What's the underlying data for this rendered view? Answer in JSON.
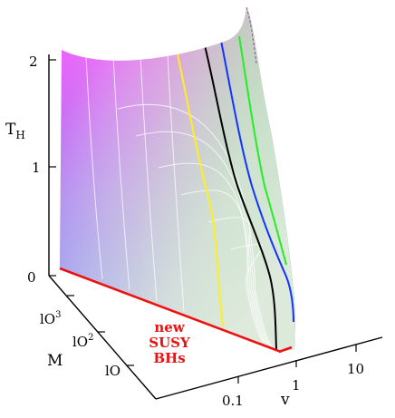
{
  "chart_data": {
    "type": "surface3d",
    "z_axis": {
      "label": "T",
      "label_sub": "H",
      "ticks": [
        "0",
        "1",
        "2"
      ],
      "range": [
        0,
        2
      ]
    },
    "x_axis": {
      "label": "v",
      "scale": "log",
      "ticks": [
        "0.1",
        "1",
        "10"
      ]
    },
    "y_axis": {
      "label": "M",
      "scale": "log",
      "ticks": [
        "lO",
        "lO",
        "lO"
      ],
      "tick_exponents": [
        "",
        "2",
        "3"
      ]
    },
    "annotation": {
      "lines": [
        "new",
        "SUSY",
        "BHs"
      ],
      "color": "#ee1111"
    },
    "colors": {
      "surface_top_left": "#ff55ff",
      "surface_bottom_left": "#4466ee",
      "surface_bottom_right": "#33aa55",
      "surface_top_right": "#f0f4ec",
      "boundary": "#ee1111",
      "grid": "#ffffff"
    },
    "highlighted_curves": [
      {
        "color": "#ffee22"
      },
      {
        "color": "#000000"
      },
      {
        "color": "#1133ff"
      },
      {
        "color": "#22ee22"
      }
    ],
    "grid": true
  }
}
